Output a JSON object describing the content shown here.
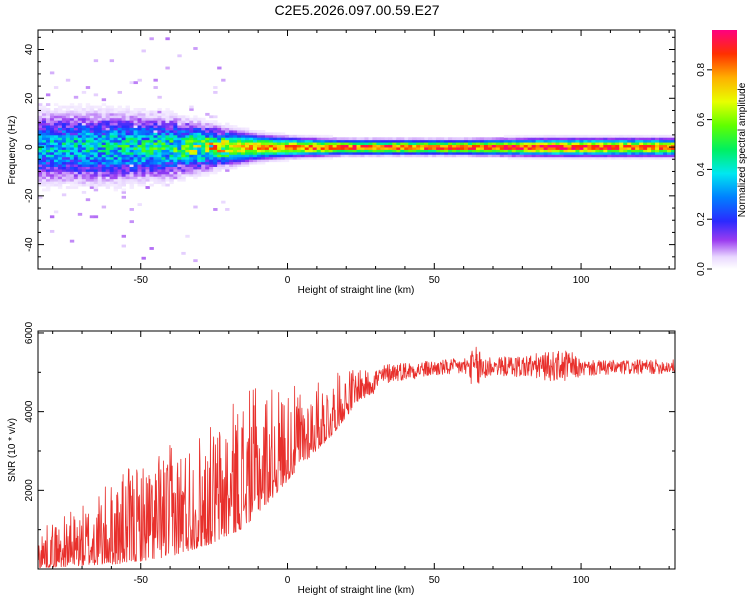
{
  "figure": {
    "title": "C2E5.2026.097.00.59.E27"
  },
  "chart_data": [
    {
      "type": "heatmap",
      "xlabel": "Height of straight line (km)",
      "ylabel": "Frequency (Hz)",
      "xlim": [
        -85,
        132
      ],
      "ylim": [
        -50,
        48
      ],
      "xticks": [
        -50,
        0,
        50,
        100
      ],
      "yticks": [
        -40,
        -20,
        0,
        20,
        40
      ],
      "colorbar": {
        "label": "Normalized spectral amplitude",
        "ticks": [
          "0.0",
          "0.2",
          "0.4",
          "0.6",
          "0.8"
        ],
        "range": [
          0,
          0.96
        ]
      },
      "ridge": [
        {
          "x": -85,
          "halfwidth": 7,
          "peak": 0.35
        },
        {
          "x": -60,
          "halfwidth": 7,
          "peak": 0.4
        },
        {
          "x": -40,
          "halfwidth": 6,
          "peak": 0.45
        },
        {
          "x": -25,
          "halfwidth": 4,
          "peak": 0.65
        },
        {
          "x": -10,
          "halfwidth": 2.5,
          "peak": 0.8
        },
        {
          "x": 0,
          "halfwidth": 2,
          "peak": 0.85
        },
        {
          "x": 20,
          "halfwidth": 1.5,
          "peak": 0.9
        },
        {
          "x": 60,
          "halfwidth": 1.5,
          "peak": 0.9
        },
        {
          "x": 90,
          "halfwidth": 1.8,
          "peak": 0.95
        },
        {
          "x": 132,
          "halfwidth": 1.8,
          "peak": 0.85
        }
      ]
    },
    {
      "type": "line",
      "xlabel": "Height of straight line (km)",
      "ylabel": "SNR (10 * v/v)",
      "xlim": [
        -85,
        132
      ],
      "ylim": [
        0,
        6050
      ],
      "xticks": [
        -50,
        0,
        50,
        100
      ],
      "yticks": [
        2000,
        4000,
        6000
      ],
      "series": [
        {
          "color": "#e8302c",
          "envelope": [
            {
              "x": -85,
              "base": 300,
              "amp": 450
            },
            {
              "x": -70,
              "base": 500,
              "amp": 700
            },
            {
              "x": -55,
              "base": 800,
              "amp": 1100
            },
            {
              "x": -40,
              "base": 1100,
              "amp": 1300
            },
            {
              "x": -25,
              "base": 1500,
              "amp": 1400
            },
            {
              "x": -15,
              "base": 2000,
              "amp": 1600
            },
            {
              "x": -5,
              "base": 2600,
              "amp": 1300
            },
            {
              "x": 5,
              "base": 3200,
              "amp": 900
            },
            {
              "x": 15,
              "base": 3800,
              "amp": 700
            },
            {
              "x": 25,
              "base": 4600,
              "amp": 400
            },
            {
              "x": 35,
              "base": 5000,
              "amp": 250
            },
            {
              "x": 50,
              "base": 5100,
              "amp": 200
            },
            {
              "x": 60,
              "base": 5150,
              "amp": 220
            },
            {
              "x": 65,
              "base": 5100,
              "amp": 600
            },
            {
              "x": 70,
              "base": 5150,
              "amp": 220
            },
            {
              "x": 96,
              "base": 5150,
              "amp": 420
            },
            {
              "x": 100,
              "base": 5100,
              "amp": 200
            },
            {
              "x": 132,
              "base": 5150,
              "amp": 180
            }
          ]
        }
      ]
    }
  ]
}
